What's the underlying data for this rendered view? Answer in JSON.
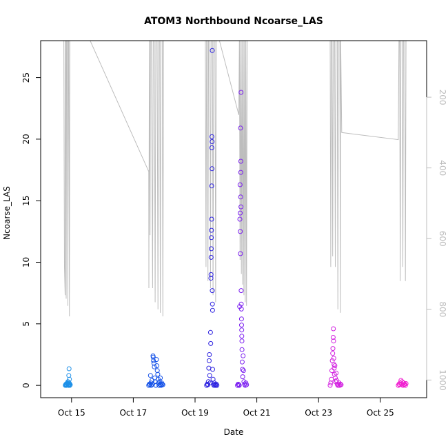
{
  "chart_data": {
    "type": "scatter",
    "title": "ATOM3 Northbound Ncoarse_LAS",
    "xlabel": "Date",
    "ylabel": "Ncoarse_LAS",
    "x_type": "date",
    "xlim": [
      "2023-10-14T00:00",
      "2023-10-26T12:00"
    ],
    "ylim": [
      -1,
      28
    ],
    "y_ticks": [
      0,
      5,
      10,
      15,
      20,
      25
    ],
    "x_ticks": [
      {
        "date": "2023-10-15",
        "label": "Oct 15"
      },
      {
        "date": "2023-10-17",
        "label": "Oct 17"
      },
      {
        "date": "2023-10-19",
        "label": "Oct 19"
      },
      {
        "date": "2023-10-21",
        "label": "Oct 21"
      },
      {
        "date": "2023-10-23",
        "label": "Oct 23"
      },
      {
        "date": "2023-10-25",
        "label": "Oct 25"
      }
    ],
    "right_axis": {
      "reversed": true,
      "ticks": [
        200,
        400,
        600,
        800,
        1000
      ],
      "lim": [
        40,
        1050
      ],
      "color": "#bdbdbd"
    },
    "grid": false,
    "legend": "none",
    "series": [
      {
        "color": "#1e90e8",
        "points": [
          [
            "2023-10-14T19:10",
            0.0
          ],
          [
            "2023-10-14T19:25",
            0.05
          ],
          [
            "2023-10-14T19:40",
            0.1
          ],
          [
            "2023-10-14T19:55",
            0.0
          ],
          [
            "2023-10-14T20:10",
            0.05
          ],
          [
            "2023-10-14T20:25",
            0.15
          ],
          [
            "2023-10-14T20:40",
            0.2
          ],
          [
            "2023-10-14T20:55",
            0.1
          ],
          [
            "2023-10-14T21:10",
            0.3
          ],
          [
            "2023-10-14T21:25",
            0.05
          ],
          [
            "2023-10-14T21:40",
            0.0
          ],
          [
            "2023-10-14T21:50",
            0.8
          ],
          [
            "2023-10-14T22:00",
            0.05
          ],
          [
            "2023-10-14T22:05",
            1.35
          ],
          [
            "2023-10-14T22:10",
            0.2
          ],
          [
            "2023-10-14T22:20",
            0.5
          ],
          [
            "2023-10-14T22:30",
            0.1
          ],
          [
            "2023-10-14T22:40",
            0.0
          ],
          [
            "2023-10-14T23:00",
            0.05
          ]
        ]
      },
      {
        "color": "#1552e8",
        "points": [
          [
            "2023-10-17T12:00",
            0.0
          ],
          [
            "2023-10-17T12:30",
            0.1
          ],
          [
            "2023-10-17T13:00",
            0.05
          ],
          [
            "2023-10-17T13:20",
            0.8
          ],
          [
            "2023-10-17T13:40",
            0.2
          ],
          [
            "2023-10-17T14:00",
            0.0
          ],
          [
            "2023-10-17T14:30",
            0.4
          ],
          [
            "2023-10-17T15:00",
            0.1
          ],
          [
            "2023-10-17T15:20",
            2.4
          ],
          [
            "2023-10-17T15:30",
            2.3
          ],
          [
            "2023-10-17T15:40",
            2.0
          ],
          [
            "2023-10-17T16:00",
            1.8
          ],
          [
            "2023-10-17T16:20",
            1.5
          ],
          [
            "2023-10-17T16:40",
            0.6
          ],
          [
            "2023-10-17T17:00",
            0.3
          ],
          [
            "2023-10-17T17:30",
            0.0
          ],
          [
            "2023-10-17T18:00",
            2.1
          ],
          [
            "2023-10-17T18:20",
            1.6
          ],
          [
            "2023-10-17T18:40",
            1.2
          ],
          [
            "2023-10-17T19:00",
            0.9
          ],
          [
            "2023-10-17T19:20",
            0.5
          ],
          [
            "2023-10-17T19:40",
            0.2
          ],
          [
            "2023-10-17T20:00",
            0.0
          ],
          [
            "2023-10-17T20:20",
            0.3
          ],
          [
            "2023-10-17T20:40",
            0.1
          ],
          [
            "2023-10-17T21:00",
            0.6
          ],
          [
            "2023-10-17T21:20",
            0.05
          ],
          [
            "2023-10-17T21:40",
            0.0
          ],
          [
            "2023-10-17T22:00",
            0.2
          ],
          [
            "2023-10-17T22:30",
            0.1
          ],
          [
            "2023-10-17T23:00",
            0.05
          ]
        ]
      },
      {
        "color": "#2b20e0",
        "points": [
          [
            "2023-10-19T09:00",
            0.0
          ],
          [
            "2023-10-19T09:30",
            0.1
          ],
          [
            "2023-10-19T10:00",
            0.05
          ],
          [
            "2023-10-19T10:20",
            0.3
          ],
          [
            "2023-10-19T10:40",
            1.4
          ],
          [
            "2023-10-19T11:00",
            2.0
          ],
          [
            "2023-10-19T11:10",
            2.5
          ],
          [
            "2023-10-19T11:20",
            0.8
          ],
          [
            "2023-10-19T11:40",
            0.2
          ],
          [
            "2023-10-19T12:00",
            4.3
          ],
          [
            "2023-10-19T12:10",
            3.4
          ],
          [
            "2023-10-19T12:20",
            8.7
          ],
          [
            "2023-10-19T12:25",
            9.0
          ],
          [
            "2023-10-19T12:30",
            10.4
          ],
          [
            "2023-10-19T12:35",
            11.1
          ],
          [
            "2023-10-19T12:40",
            12.0
          ],
          [
            "2023-10-19T12:45",
            12.6
          ],
          [
            "2023-10-19T12:50",
            13.5
          ],
          [
            "2023-10-19T12:55",
            16.2
          ],
          [
            "2023-10-19T13:00",
            19.3
          ],
          [
            "2023-10-19T13:05",
            20.2
          ],
          [
            "2023-10-19T13:10",
            17.6
          ],
          [
            "2023-10-19T13:15",
            19.8
          ],
          [
            "2023-10-19T13:20",
            27.2
          ],
          [
            "2023-10-19T13:25",
            7.7
          ],
          [
            "2023-10-19T13:30",
            6.6
          ],
          [
            "2023-10-19T13:35",
            6.1
          ],
          [
            "2023-10-19T13:40",
            1.3
          ],
          [
            "2023-10-19T14:00",
            0.5
          ],
          [
            "2023-10-19T14:20",
            0.1
          ],
          [
            "2023-10-19T14:40",
            0.0
          ],
          [
            "2023-10-19T15:00",
            0.2
          ],
          [
            "2023-10-19T15:30",
            0.05
          ],
          [
            "2023-10-19T16:00",
            0.0
          ],
          [
            "2023-10-19T16:30",
            0.1
          ],
          [
            "2023-10-19T17:00",
            0.0
          ]
        ]
      },
      {
        "color": "#7a1cf0",
        "points": [
          [
            "2023-10-20T09:00",
            0.0
          ],
          [
            "2023-10-20T09:30",
            0.1
          ],
          [
            "2023-10-20T10:00",
            0.05
          ],
          [
            "2023-10-20T10:20",
            0.0
          ],
          [
            "2023-10-20T10:40",
            6.4
          ],
          [
            "2023-10-20T10:50",
            13.5
          ],
          [
            "2023-10-20T11:00",
            16.3
          ],
          [
            "2023-10-20T11:05",
            14.0
          ],
          [
            "2023-10-20T11:10",
            12.5
          ],
          [
            "2023-10-20T11:15",
            10.7
          ],
          [
            "2023-10-20T11:20",
            20.9
          ],
          [
            "2023-10-20T11:25",
            15.3
          ],
          [
            "2023-10-20T11:30",
            17.3
          ],
          [
            "2023-10-20T11:35",
            18.2
          ],
          [
            "2023-10-20T11:40",
            14.5
          ],
          [
            "2023-10-20T11:45",
            23.8
          ],
          [
            "2023-10-20T11:50",
            7.7
          ],
          [
            "2023-10-20T11:55",
            6.6
          ],
          [
            "2023-10-20T12:00",
            6.2
          ],
          [
            "2023-10-20T12:05",
            5.4
          ],
          [
            "2023-10-20T12:10",
            4.9
          ],
          [
            "2023-10-20T12:15",
            4.5
          ],
          [
            "2023-10-20T12:20",
            4.0
          ],
          [
            "2023-10-20T12:25",
            3.6
          ],
          [
            "2023-10-20T12:30",
            2.9
          ],
          [
            "2023-10-20T12:40",
            1.9
          ],
          [
            "2023-10-20T12:50",
            1.3
          ],
          [
            "2023-10-20T13:00",
            0.7
          ],
          [
            "2023-10-20T13:20",
            2.4
          ],
          [
            "2023-10-20T13:40",
            1.2
          ],
          [
            "2023-10-20T14:00",
            0.3
          ],
          [
            "2023-10-20T14:30",
            0.1
          ],
          [
            "2023-10-20T15:00",
            0.0
          ],
          [
            "2023-10-20T15:30",
            0.2
          ],
          [
            "2023-10-20T16:00",
            0.05
          ]
        ]
      },
      {
        "color": "#d21ee0",
        "points": [
          [
            "2023-10-23T09:00",
            0.0
          ],
          [
            "2023-10-23T09:30",
            0.2
          ],
          [
            "2023-10-23T10:00",
            0.5
          ],
          [
            "2023-10-23T10:20",
            1.2
          ],
          [
            "2023-10-23T10:40",
            2.0
          ],
          [
            "2023-10-23T11:00",
            2.6
          ],
          [
            "2023-10-23T11:10",
            3.0
          ],
          [
            "2023-10-23T11:20",
            3.9
          ],
          [
            "2023-10-23T11:30",
            4.6
          ],
          [
            "2023-10-23T11:40",
            3.6
          ],
          [
            "2023-10-23T11:50",
            2.2
          ],
          [
            "2023-10-23T12:00",
            1.7
          ],
          [
            "2023-10-23T12:10",
            1.4
          ],
          [
            "2023-10-23T12:20",
            0.9
          ],
          [
            "2023-10-23T12:40",
            1.6
          ],
          [
            "2023-10-23T13:00",
            0.6
          ],
          [
            "2023-10-23T13:20",
            0.3
          ],
          [
            "2023-10-23T13:40",
            1.0
          ],
          [
            "2023-10-23T14:00",
            0.4
          ],
          [
            "2023-10-23T14:30",
            0.1
          ],
          [
            "2023-10-23T15:00",
            0.0
          ],
          [
            "2023-10-23T15:30",
            0.05
          ],
          [
            "2023-10-23T16:00",
            0.2
          ],
          [
            "2023-10-23T16:30",
            0.0
          ],
          [
            "2023-10-23T17:00",
            0.1
          ],
          [
            "2023-10-23T17:30",
            0.05
          ]
        ]
      },
      {
        "color": "#f020d0",
        "points": [
          [
            "2023-10-25T14:00",
            0.0
          ],
          [
            "2023-10-25T14:30",
            0.1
          ],
          [
            "2023-10-25T15:00",
            0.05
          ],
          [
            "2023-10-25T15:30",
            0.2
          ],
          [
            "2023-10-25T16:00",
            0.4
          ],
          [
            "2023-10-25T16:30",
            0.1
          ],
          [
            "2023-10-25T17:00",
            0.3
          ],
          [
            "2023-10-25T17:30",
            0.0
          ],
          [
            "2023-10-25T18:00",
            0.2
          ],
          [
            "2023-10-25T18:30",
            0.05
          ],
          [
            "2023-10-25T19:00",
            0.1
          ],
          [
            "2023-10-25T19:30",
            0.0
          ],
          [
            "2023-10-25T20:00",
            0.15
          ]
        ]
      }
    ],
    "right_series": {
      "color": "#bdbdbd",
      "points": [
        [
          "2023-10-14T18:00",
          20
        ],
        [
          "2023-10-14T18:30",
          680
        ],
        [
          "2023-10-14T19:00",
          760
        ],
        [
          "2023-10-14T19:10",
          20
        ],
        [
          "2023-10-14T19:30",
          20
        ],
        [
          "2023-10-14T19:50",
          770
        ],
        [
          "2023-10-14T20:10",
          20
        ],
        [
          "2023-10-14T20:40",
          20
        ],
        [
          "2023-10-14T21:10",
          790
        ],
        [
          "2023-10-14T21:30",
          20
        ],
        [
          "2023-10-14T21:50",
          20
        ],
        [
          "2023-10-14T22:20",
          820
        ],
        [
          "2023-10-14T22:40",
          20
        ],
        [
          "2023-10-14T23:10",
          20
        ],
        [
          "2023-10-15T12:00",
          20
        ],
        [
          "2023-10-17T12:00",
          410
        ],
        [
          "2023-10-17T12:05",
          740
        ],
        [
          "2023-10-17T12:30",
          20
        ],
        [
          "2023-10-17T13:00",
          590
        ],
        [
          "2023-10-17T13:20",
          20
        ],
        [
          "2023-10-17T14:00",
          20
        ],
        [
          "2023-10-17T15:00",
          740
        ],
        [
          "2023-10-17T15:30",
          20
        ],
        [
          "2023-10-17T16:20",
          20
        ],
        [
          "2023-10-17T17:00",
          780
        ],
        [
          "2023-10-17T17:30",
          20
        ],
        [
          "2023-10-17T18:30",
          20
        ],
        [
          "2023-10-17T19:10",
          800
        ],
        [
          "2023-10-17T19:40",
          20
        ],
        [
          "2023-10-17T20:30",
          20
        ],
        [
          "2023-10-17T21:00",
          810
        ],
        [
          "2023-10-17T21:30",
          20
        ],
        [
          "2023-10-17T22:30",
          20
        ],
        [
          "2023-10-17T23:00",
          820
        ],
        [
          "2023-10-17T23:30",
          20
        ],
        [
          "2023-10-19T08:00",
          20
        ],
        [
          "2023-10-19T08:30",
          680
        ],
        [
          "2023-10-19T09:00",
          20
        ],
        [
          "2023-10-19T09:30",
          20
        ],
        [
          "2023-10-19T10:00",
          720
        ],
        [
          "2023-10-19T10:30",
          20
        ],
        [
          "2023-10-19T11:30",
          20
        ],
        [
          "2023-10-19T12:00",
          740
        ],
        [
          "2023-10-19T12:30",
          20
        ],
        [
          "2023-10-19T13:30",
          20
        ],
        [
          "2023-10-19T14:00",
          760
        ],
        [
          "2023-10-19T14:30",
          20
        ],
        [
          "2023-10-19T15:30",
          20
        ],
        [
          "2023-10-19T16:00",
          780
        ],
        [
          "2023-10-19T16:30",
          20
        ],
        [
          "2023-10-19T17:30",
          20
        ],
        [
          "2023-10-20T10:00",
          250
        ],
        [
          "2023-10-20T10:30",
          20
        ],
        [
          "2023-10-20T11:00",
          660
        ],
        [
          "2023-10-20T11:30",
          20
        ],
        [
          "2023-10-20T12:00",
          700
        ],
        [
          "2023-10-20T12:30",
          20
        ],
        [
          "2023-10-20T13:00",
          730
        ],
        [
          "2023-10-20T13:30",
          20
        ],
        [
          "2023-10-20T14:00",
          760
        ],
        [
          "2023-10-20T14:30",
          20
        ],
        [
          "2023-10-20T15:00",
          780
        ],
        [
          "2023-10-20T15:30",
          20
        ],
        [
          "2023-10-20T16:00",
          790
        ],
        [
          "2023-10-20T16:30",
          20
        ],
        [
          "2023-10-23T09:00",
          20
        ],
        [
          "2023-10-23T09:30",
          680
        ],
        [
          "2023-10-23T10:00",
          20
        ],
        [
          "2023-10-23T10:30",
          20
        ],
        [
          "2023-10-23T11:00",
          650
        ],
        [
          "2023-10-23T11:30",
          20
        ],
        [
          "2023-10-23T12:30",
          20
        ],
        [
          "2023-10-23T13:00",
          680
        ],
        [
          "2023-10-23T13:30",
          20
        ],
        [
          "2023-10-23T14:30",
          20
        ],
        [
          "2023-10-23T15:00",
          800
        ],
        [
          "2023-10-23T15:30",
          20
        ],
        [
          "2023-10-23T16:30",
          20
        ],
        [
          "2023-10-23T17:00",
          810
        ],
        [
          "2023-10-23T17:10",
          20
        ],
        [
          "2023-10-23T18:00",
          300
        ],
        [
          "2023-10-25T14:00",
          320
        ],
        [
          "2023-10-25T14:30",
          20
        ],
        [
          "2023-10-25T15:00",
          20
        ],
        [
          "2023-10-25T15:30",
          720
        ],
        [
          "2023-10-25T16:00",
          20
        ],
        [
          "2023-10-25T17:00",
          20
        ],
        [
          "2023-10-25T17:30",
          680
        ],
        [
          "2023-10-25T18:00",
          20
        ],
        [
          "2023-10-25T19:00",
          20
        ],
        [
          "2023-10-25T19:30",
          720
        ],
        [
          "2023-10-25T20:00",
          20
        ]
      ]
    }
  }
}
